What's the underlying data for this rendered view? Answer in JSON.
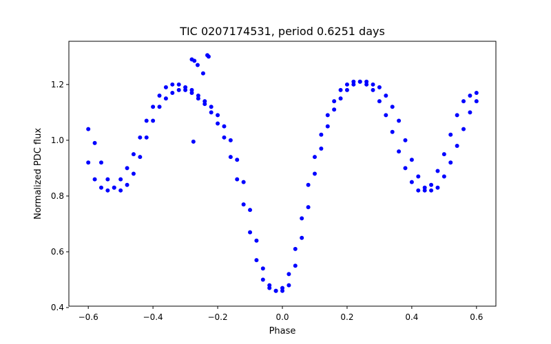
{
  "chart_data": {
    "type": "scatter",
    "title": "TIC 0207174531, period 0.6251 days",
    "xlabel": "Phase",
    "ylabel": "Normalized PDC flux",
    "xlim": [
      -0.66,
      0.66
    ],
    "ylim": [
      0.405,
      1.355
    ],
    "xticks": [
      -0.6,
      -0.4,
      -0.2,
      0.0,
      0.2,
      0.4,
      0.6
    ],
    "xtick_labels": [
      "−0.6",
      "−0.4",
      "−0.2",
      "0.0",
      "0.2",
      "0.4",
      "0.6"
    ],
    "yticks": [
      0.4,
      0.6,
      0.8,
      1.0,
      1.2
    ],
    "ytick_labels": [
      "0.4",
      "0.6",
      "0.8",
      "1.0",
      "1.2"
    ],
    "grid": false,
    "marker_color": "#0000ff",
    "series": [
      {
        "x": [
          -0.6,
          -0.58,
          -0.56,
          -0.54,
          -0.52,
          -0.5,
          -0.48,
          -0.46,
          -0.44,
          -0.42,
          -0.4,
          -0.38,
          -0.36,
          -0.34,
          -0.32,
          -0.3,
          -0.28,
          -0.26,
          -0.24,
          -0.22,
          -0.2,
          -0.18,
          -0.16,
          -0.14,
          -0.12,
          -0.1,
          -0.08,
          -0.06,
          -0.04,
          -0.02,
          0.0,
          0.02,
          0.04,
          0.06,
          0.08,
          0.1,
          0.12,
          0.14,
          0.16,
          0.18,
          0.2,
          0.22,
          0.24,
          0.26,
          0.28,
          0.3,
          0.32,
          0.34,
          0.36,
          0.38,
          0.4,
          0.42,
          0.44,
          0.46,
          0.48,
          0.5,
          0.52,
          0.54,
          0.56,
          0.58,
          0.6
        ],
        "y": [
          1.04,
          0.99,
          0.92,
          0.86,
          0.83,
          0.82,
          0.84,
          0.88,
          0.94,
          1.01,
          1.07,
          1.12,
          1.15,
          1.17,
          1.18,
          1.18,
          1.17,
          1.15,
          1.13,
          1.1,
          1.06,
          1.01,
          0.94,
          0.86,
          0.77,
          0.67,
          0.57,
          0.5,
          0.47,
          0.46,
          0.47,
          0.52,
          0.61,
          0.72,
          0.84,
          0.94,
          1.02,
          1.09,
          1.14,
          1.18,
          1.2,
          1.21,
          1.21,
          1.2,
          1.18,
          1.14,
          1.09,
          1.03,
          0.96,
          0.9,
          0.85,
          0.82,
          0.82,
          0.84,
          0.89,
          0.95,
          1.02,
          1.09,
          1.14,
          1.16,
          1.17
        ]
      },
      {
        "x": [
          -0.6,
          -0.58,
          -0.56,
          -0.54,
          -0.52,
          -0.5,
          -0.48,
          -0.46,
          -0.44,
          -0.42,
          -0.4,
          -0.38,
          -0.36,
          -0.34,
          -0.32,
          -0.3,
          -0.28,
          -0.26,
          -0.24,
          -0.22,
          -0.2,
          -0.18,
          -0.16,
          -0.14,
          -0.12,
          -0.1,
          -0.08,
          -0.06,
          -0.04,
          -0.02,
          0.0,
          0.02,
          0.04,
          0.06,
          0.08,
          0.1,
          0.12,
          0.14,
          0.16,
          0.18,
          0.2,
          0.22,
          0.24,
          0.26,
          0.28,
          0.3,
          0.32,
          0.34,
          0.36,
          0.38,
          0.4,
          0.42,
          0.44,
          0.46,
          0.48,
          0.5,
          0.52,
          0.54,
          0.56,
          0.58,
          0.6
        ],
        "y": [
          0.92,
          0.86,
          0.83,
          0.82,
          0.83,
          0.86,
          0.9,
          0.95,
          1.01,
          1.07,
          1.12,
          1.16,
          1.19,
          1.2,
          1.2,
          1.19,
          1.18,
          1.16,
          1.14,
          1.12,
          1.09,
          1.05,
          1.0,
          0.93,
          0.85,
          0.75,
          0.64,
          0.54,
          0.48,
          0.46,
          0.46,
          0.48,
          0.55,
          0.65,
          0.76,
          0.88,
          0.97,
          1.05,
          1.11,
          1.15,
          1.18,
          1.2,
          1.21,
          1.21,
          1.2,
          1.19,
          1.16,
          1.12,
          1.07,
          1.0,
          0.93,
          0.87,
          0.83,
          0.82,
          0.83,
          0.87,
          0.92,
          0.98,
          1.04,
          1.1,
          1.14
        ]
      },
      {
        "x": [
          -0.275,
          -0.28,
          -0.272,
          -0.232,
          -0.228,
          -0.245,
          -0.262
        ],
        "y": [
          0.995,
          1.29,
          1.285,
          1.305,
          1.3,
          1.24,
          1.27
        ]
      }
    ]
  }
}
